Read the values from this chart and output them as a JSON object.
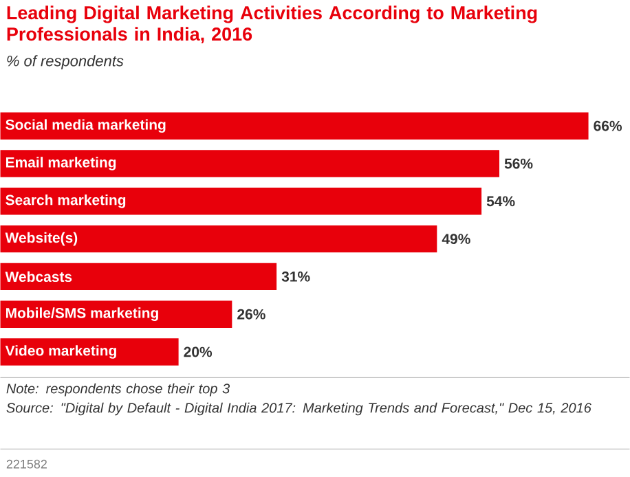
{
  "chart_data": {
    "type": "bar",
    "orientation": "horizontal",
    "title": "Leading Digital Marketing Activities According to Marketing Professionals in India, 2016",
    "subtitle": "% of respondents",
    "categories": [
      "Social media marketing",
      "Email marketing",
      "Search marketing",
      "Website(s)",
      "Webcasts",
      "Mobile/SMS marketing",
      "Video marketing"
    ],
    "values": [
      66,
      56,
      54,
      49,
      31,
      26,
      20
    ],
    "value_labels": [
      "66%",
      "56%",
      "54%",
      "49%",
      "31%",
      "26%",
      "20%"
    ],
    "color": "#e8000b",
    "annotations": [
      "Note: respondents chose their top 3",
      "Source: \"Digital by Default - Digital India 2017: Marketing Trends and Forecast,\" Dec 15, 2016",
      "221582"
    ]
  }
}
